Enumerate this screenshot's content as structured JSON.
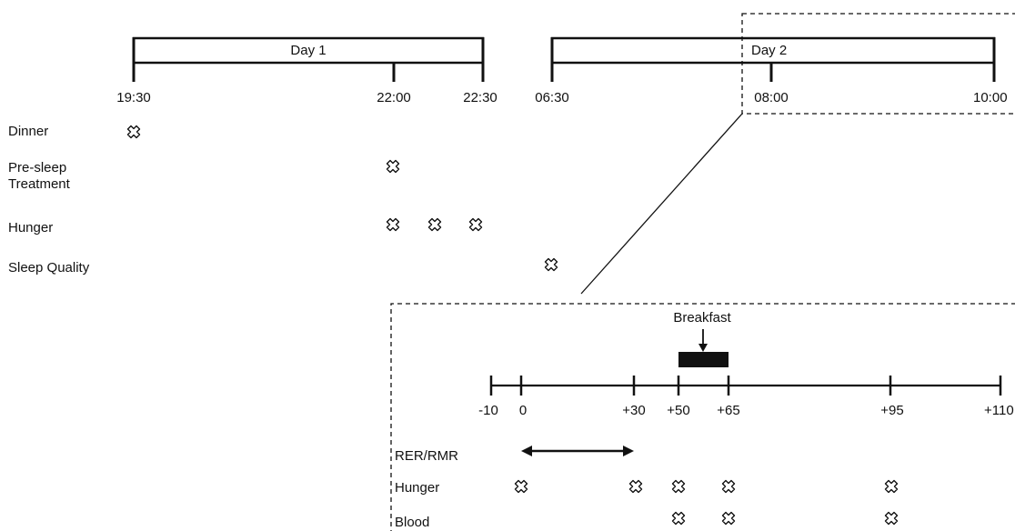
{
  "timeline": {
    "day1": {
      "label": "Day 1",
      "times": [
        "19:30",
        "22:00",
        "22:30"
      ]
    },
    "day2": {
      "label": "Day 2",
      "times": [
        "06:30",
        "08:00",
        "10:00"
      ]
    }
  },
  "rows": {
    "dinner": "Dinner",
    "pre_sleep_line1": "Pre-sleep",
    "pre_sleep_line2": "Treatment",
    "hunger": "Hunger",
    "sleep_quality": "Sleep Quality"
  },
  "detail": {
    "breakfast_label": "Breakfast",
    "ticks": [
      "-10",
      "0",
      "+30",
      "+50",
      "+65",
      "+95",
      "+110"
    ],
    "rows": {
      "rer_rmr": "RER/RMR",
      "hunger": "Hunger",
      "blood": "Blood"
    }
  },
  "icons": {
    "marker": "cross-outline-icon"
  },
  "colors": {
    "line": "#111111",
    "background": "#ffffff"
  }
}
